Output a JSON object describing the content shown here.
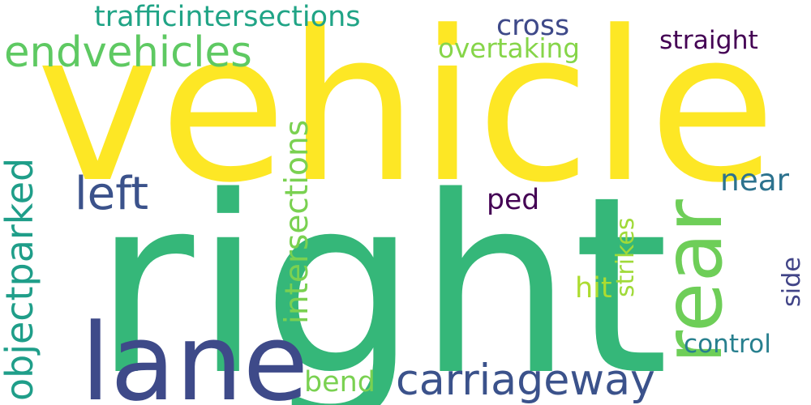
{
  "words": [
    {
      "key": "vehicle",
      "text": "vehicle",
      "color": "#fde725"
    },
    {
      "key": "right",
      "text": "right",
      "color": "#35b779"
    },
    {
      "key": "lane",
      "text": "lane",
      "color": "#3e4a89"
    },
    {
      "key": "rear",
      "text": "rear",
      "color": "#6ece58"
    },
    {
      "key": "carriageway",
      "text": "carriageway",
      "color": "#3b528b"
    },
    {
      "key": "endvehicles",
      "text": "endvehicles",
      "color": "#5ec962"
    },
    {
      "key": "objectparked",
      "text": "objectparked",
      "color": "#1f9e89"
    },
    {
      "key": "left",
      "text": "left",
      "color": "#3b528b"
    },
    {
      "key": "trafficintersections",
      "text": "trafficintersections",
      "color": "#20a486"
    },
    {
      "key": "intersections",
      "text": "intersections",
      "color": "#7ad151"
    },
    {
      "key": "overtaking",
      "text": "overtaking",
      "color": "#86d549"
    },
    {
      "key": "cross",
      "text": "cross",
      "color": "#3e4989"
    },
    {
      "key": "straight",
      "text": "straight",
      "color": "#440154"
    },
    {
      "key": "ped",
      "text": "ped",
      "color": "#440154"
    },
    {
      "key": "near",
      "text": "near",
      "color": "#2c728e"
    },
    {
      "key": "strikes",
      "text": "strikes",
      "color": "#a0da39"
    },
    {
      "key": "hit",
      "text": "hit",
      "color": "#addc30"
    },
    {
      "key": "side",
      "text": "side",
      "color": "#414487"
    },
    {
      "key": "control",
      "text": "control",
      "color": "#277f8e"
    },
    {
      "key": "bend",
      "text": "bend",
      "color": "#7ad151"
    }
  ]
}
